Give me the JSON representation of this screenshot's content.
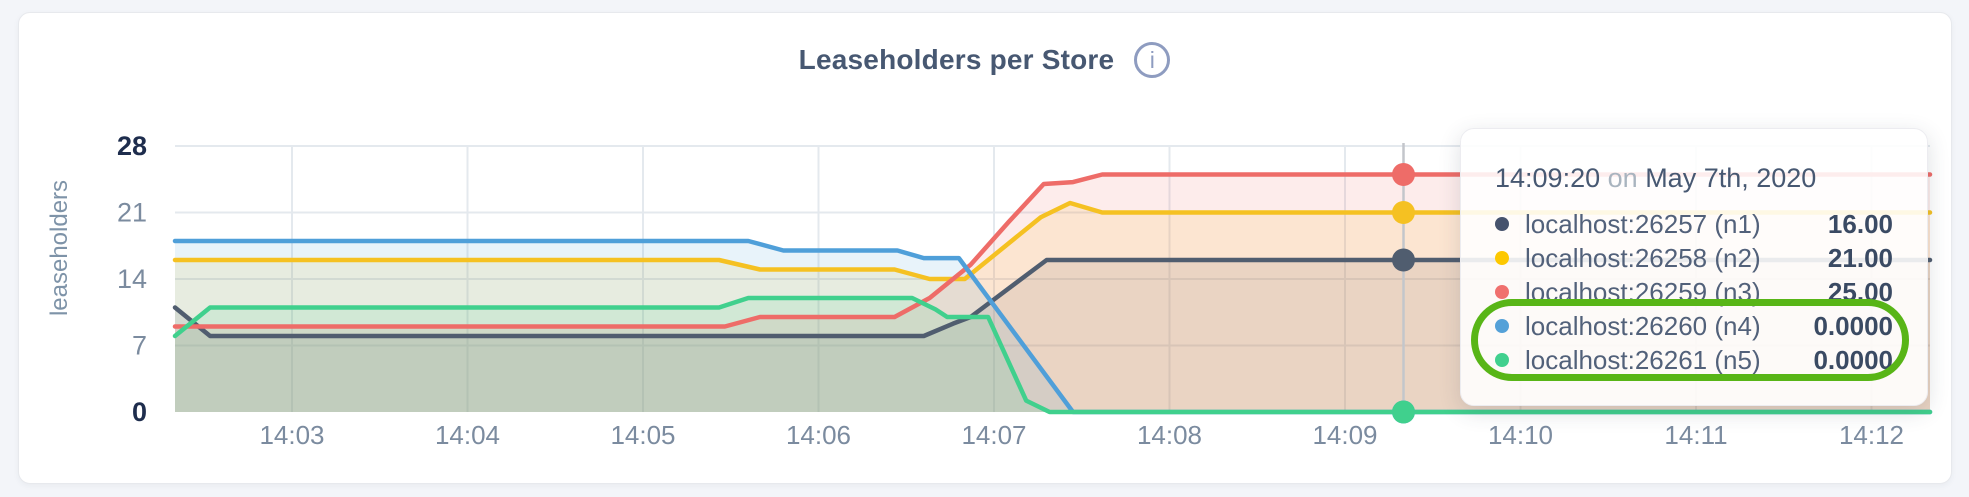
{
  "card": {
    "title": "Leaseholders per Store",
    "info_glyph": "i"
  },
  "chart_data": {
    "type": "area",
    "title": "Leaseholders per Store",
    "xlabel": "",
    "ylabel": "leaseholders",
    "ylim": [
      0,
      28
    ],
    "y_ticks": [
      0,
      7,
      14,
      21,
      28
    ],
    "grid": true,
    "x_domain_start_label": "14:02:20",
    "x_domain_seconds": 600,
    "x_ticks": [
      {
        "label": "14:03",
        "s": 40
      },
      {
        "label": "14:04",
        "s": 100
      },
      {
        "label": "14:05",
        "s": 160
      },
      {
        "label": "14:06",
        "s": 220
      },
      {
        "label": "14:07",
        "s": 280
      },
      {
        "label": "14:08",
        "s": 340
      },
      {
        "label": "14:09",
        "s": 400
      },
      {
        "label": "14:10",
        "s": 460
      },
      {
        "label": "14:11",
        "s": 520
      },
      {
        "label": "14:12",
        "s": 580
      }
    ],
    "series": [
      {
        "name": "localhost:26257 (n1)",
        "color": "#505d6f",
        "points": [
          [
            0,
            11
          ],
          [
            12,
            8
          ],
          [
            256,
            8
          ],
          [
            266,
            9.3
          ],
          [
            272,
            10
          ],
          [
            298,
            16
          ],
          [
            600,
            16
          ]
        ]
      },
      {
        "name": "localhost:26258 (n2)",
        "color": "#f5c122",
        "points": [
          [
            0,
            16
          ],
          [
            186,
            16
          ],
          [
            200,
            15
          ],
          [
            246,
            15
          ],
          [
            258,
            14
          ],
          [
            270,
            14
          ],
          [
            284,
            17.5
          ],
          [
            296,
            20.5
          ],
          [
            306,
            22
          ],
          [
            317,
            21
          ],
          [
            600,
            21
          ]
        ]
      },
      {
        "name": "localhost:26259 (n3)",
        "color": "#ee6c68",
        "points": [
          [
            0,
            9
          ],
          [
            188,
            9
          ],
          [
            200,
            10
          ],
          [
            246,
            10
          ],
          [
            258,
            12
          ],
          [
            272,
            15.5
          ],
          [
            285,
            20
          ],
          [
            297,
            24
          ],
          [
            307,
            24.2
          ],
          [
            317,
            25
          ],
          [
            600,
            25
          ]
        ]
      },
      {
        "name": "localhost:26260 (n4)",
        "color": "#4f9fd9",
        "points": [
          [
            0,
            18
          ],
          [
            196,
            18
          ],
          [
            208,
            17
          ],
          [
            247,
            17
          ],
          [
            256,
            16.2
          ],
          [
            268,
            16.2
          ],
          [
            307,
            0
          ],
          [
            600,
            0
          ]
        ]
      },
      {
        "name": "localhost:26261 (n5)",
        "color": "#40d08d",
        "points": [
          [
            0,
            8
          ],
          [
            12,
            11
          ],
          [
            186,
            11
          ],
          [
            196,
            12
          ],
          [
            252,
            12
          ],
          [
            260,
            10.8
          ],
          [
            264,
            10
          ],
          [
            278,
            10
          ],
          [
            291,
            1.2
          ],
          [
            299,
            0
          ],
          [
            600,
            0
          ]
        ]
      }
    ],
    "hover": {
      "seconds": 420,
      "time_label": "14:09:20",
      "dot_values": [
        16,
        21,
        25,
        0,
        0
      ],
      "line_color": "#c3c6cb"
    },
    "axis_colors": {
      "tick": "#7b8b9f",
      "tick_emphasis": "#1e2d4d",
      "grid": "#e4e9ee"
    }
  },
  "tooltip": {
    "time": "14:09:20",
    "connector": "on",
    "date": "May 7th, 2020",
    "rows": [
      {
        "label": "localhost:26257 (n1)",
        "value": "16.00",
        "color": "#46536d",
        "annotated": false
      },
      {
        "label": "localhost:26258 (n2)",
        "value": "21.00",
        "color": "#fdc800",
        "annotated": false
      },
      {
        "label": "localhost:26259 (n3)",
        "value": "25.00",
        "color": "#f0706e",
        "annotated": false
      },
      {
        "label": "localhost:26260 (n4)",
        "value": "0.0000",
        "color": "#55a1d8",
        "annotated": true
      },
      {
        "label": "localhost:26261 (n5)",
        "value": "0.0000",
        "color": "#41d08e",
        "annotated": true
      }
    ],
    "annotation_color": "#58b517"
  }
}
